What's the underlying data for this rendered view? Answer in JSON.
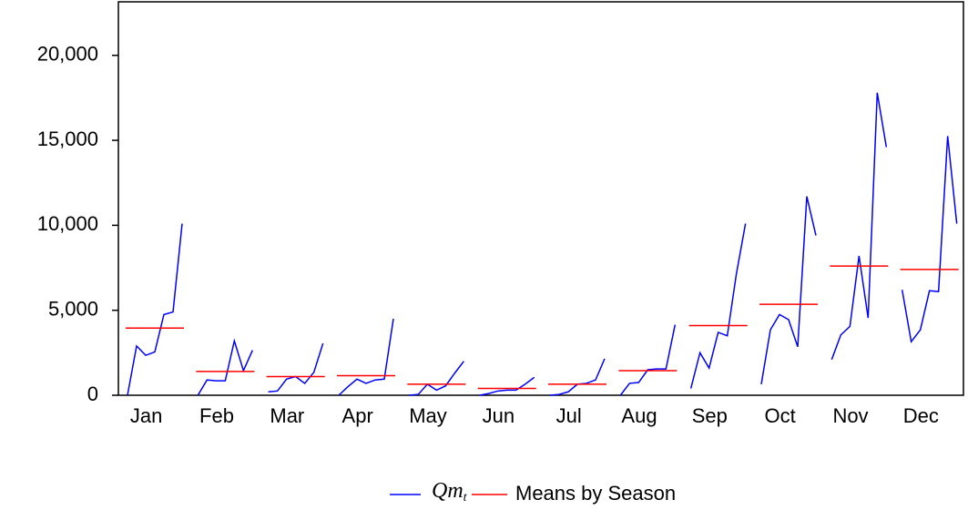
{
  "chart_data": {
    "type": "seasonal-line",
    "categories": [
      "Jan",
      "Feb",
      "Mar",
      "Apr",
      "May",
      "Jun",
      "Jul",
      "Aug",
      "Sep",
      "Oct",
      "Nov",
      "Dec"
    ],
    "series": [
      {
        "name": "Qm",
        "name_subscript": "t",
        "color": "#0000ff",
        "values": [
          [
            0,
            2900,
            2350,
            2550,
            4750,
            4900,
            10100
          ],
          [
            0,
            900,
            850,
            850,
            3200,
            1450,
            2650
          ],
          [
            200,
            250,
            950,
            1100,
            700,
            1350,
            3050
          ],
          [
            0,
            500,
            950,
            700,
            900,
            950,
            4500
          ],
          [
            0,
            50,
            650,
            300,
            550,
            1300,
            2000
          ],
          [
            0,
            100,
            250,
            300,
            300,
            650,
            1050
          ],
          [
            0,
            50,
            200,
            650,
            700,
            900,
            2150
          ],
          [
            0,
            700,
            750,
            1500,
            1550,
            1550,
            4150
          ],
          [
            400,
            2500,
            1600,
            3700,
            3500,
            7150,
            10100
          ],
          [
            650,
            3850,
            4750,
            4450,
            2850,
            11700,
            9400
          ],
          [
            2100,
            3550,
            4050,
            8200,
            4550,
            17800,
            14600
          ],
          [
            6200,
            3150,
            3850,
            6150,
            6100,
            15250,
            10100
          ]
        ]
      },
      {
        "name": "Means by Season",
        "color": "#ff0000",
        "values": [
          3950,
          1400,
          1100,
          1150,
          650,
          400,
          650,
          1450,
          4100,
          5350,
          7600,
          7400
        ]
      }
    ],
    "ylim": [
      0,
      23150
    ],
    "yticks": [
      0,
      {
        "value": 5000,
        "label": "5,000"
      },
      {
        "value": 10000,
        "label": "10,000"
      },
      {
        "value": 15000,
        "label": "15,000"
      },
      {
        "value": 20000,
        "label": "20,000"
      }
    ]
  }
}
